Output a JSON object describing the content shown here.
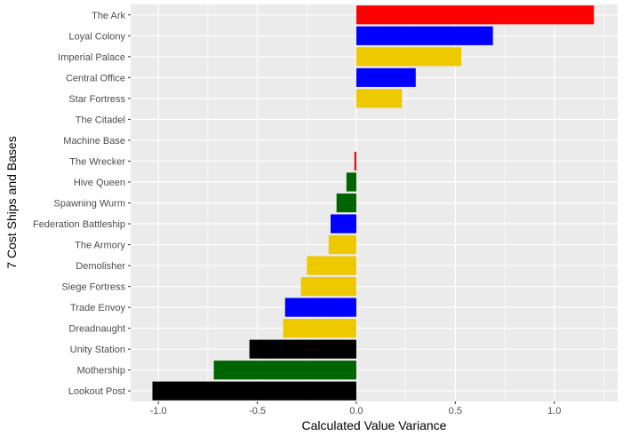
{
  "chart_data": {
    "type": "bar",
    "orientation": "horizontal",
    "title": "",
    "xlabel": "Calculated Value Variance",
    "ylabel": "7 Cost Ships and Bases",
    "xlim": [
      -1.14,
      1.32
    ],
    "xticks": [
      -1.0,
      -0.5,
      0.0,
      0.5,
      1.0
    ],
    "xtick_labels": [
      "-1.0",
      "-0.5",
      "0.0",
      "0.5",
      "1.0"
    ],
    "grid": true,
    "categories": [
      "The Ark",
      "Loyal Colony",
      "Imperial Palace",
      "Central Office",
      "Star Fortress",
      "The Citadel",
      "Machine Base",
      "The Wrecker",
      "Hive Queen",
      "Spawning Wurm",
      "Federation Battleship",
      "The Armory",
      "Demolisher",
      "Siege Fortress",
      "Trade Envoy",
      "Dreadnaught",
      "Unity Station",
      "Mothership",
      "Lookout Post"
    ],
    "values": [
      1.2,
      0.69,
      0.53,
      0.3,
      0.23,
      0.0,
      0.0,
      -0.01,
      -0.05,
      -0.1,
      -0.13,
      -0.14,
      -0.25,
      -0.28,
      -0.36,
      -0.37,
      -0.54,
      -0.72,
      -1.03
    ],
    "colors": [
      "#FF0000",
      "#0000FF",
      "#EEC900",
      "#0000FF",
      "#EEC900",
      "#EEC900",
      "#EEC900",
      "#FF0000",
      "#006400",
      "#006400",
      "#0000FF",
      "#EEC900",
      "#EEC900",
      "#EEC900",
      "#0000FF",
      "#EEC900",
      "#000000",
      "#006400",
      "#000000"
    ]
  }
}
